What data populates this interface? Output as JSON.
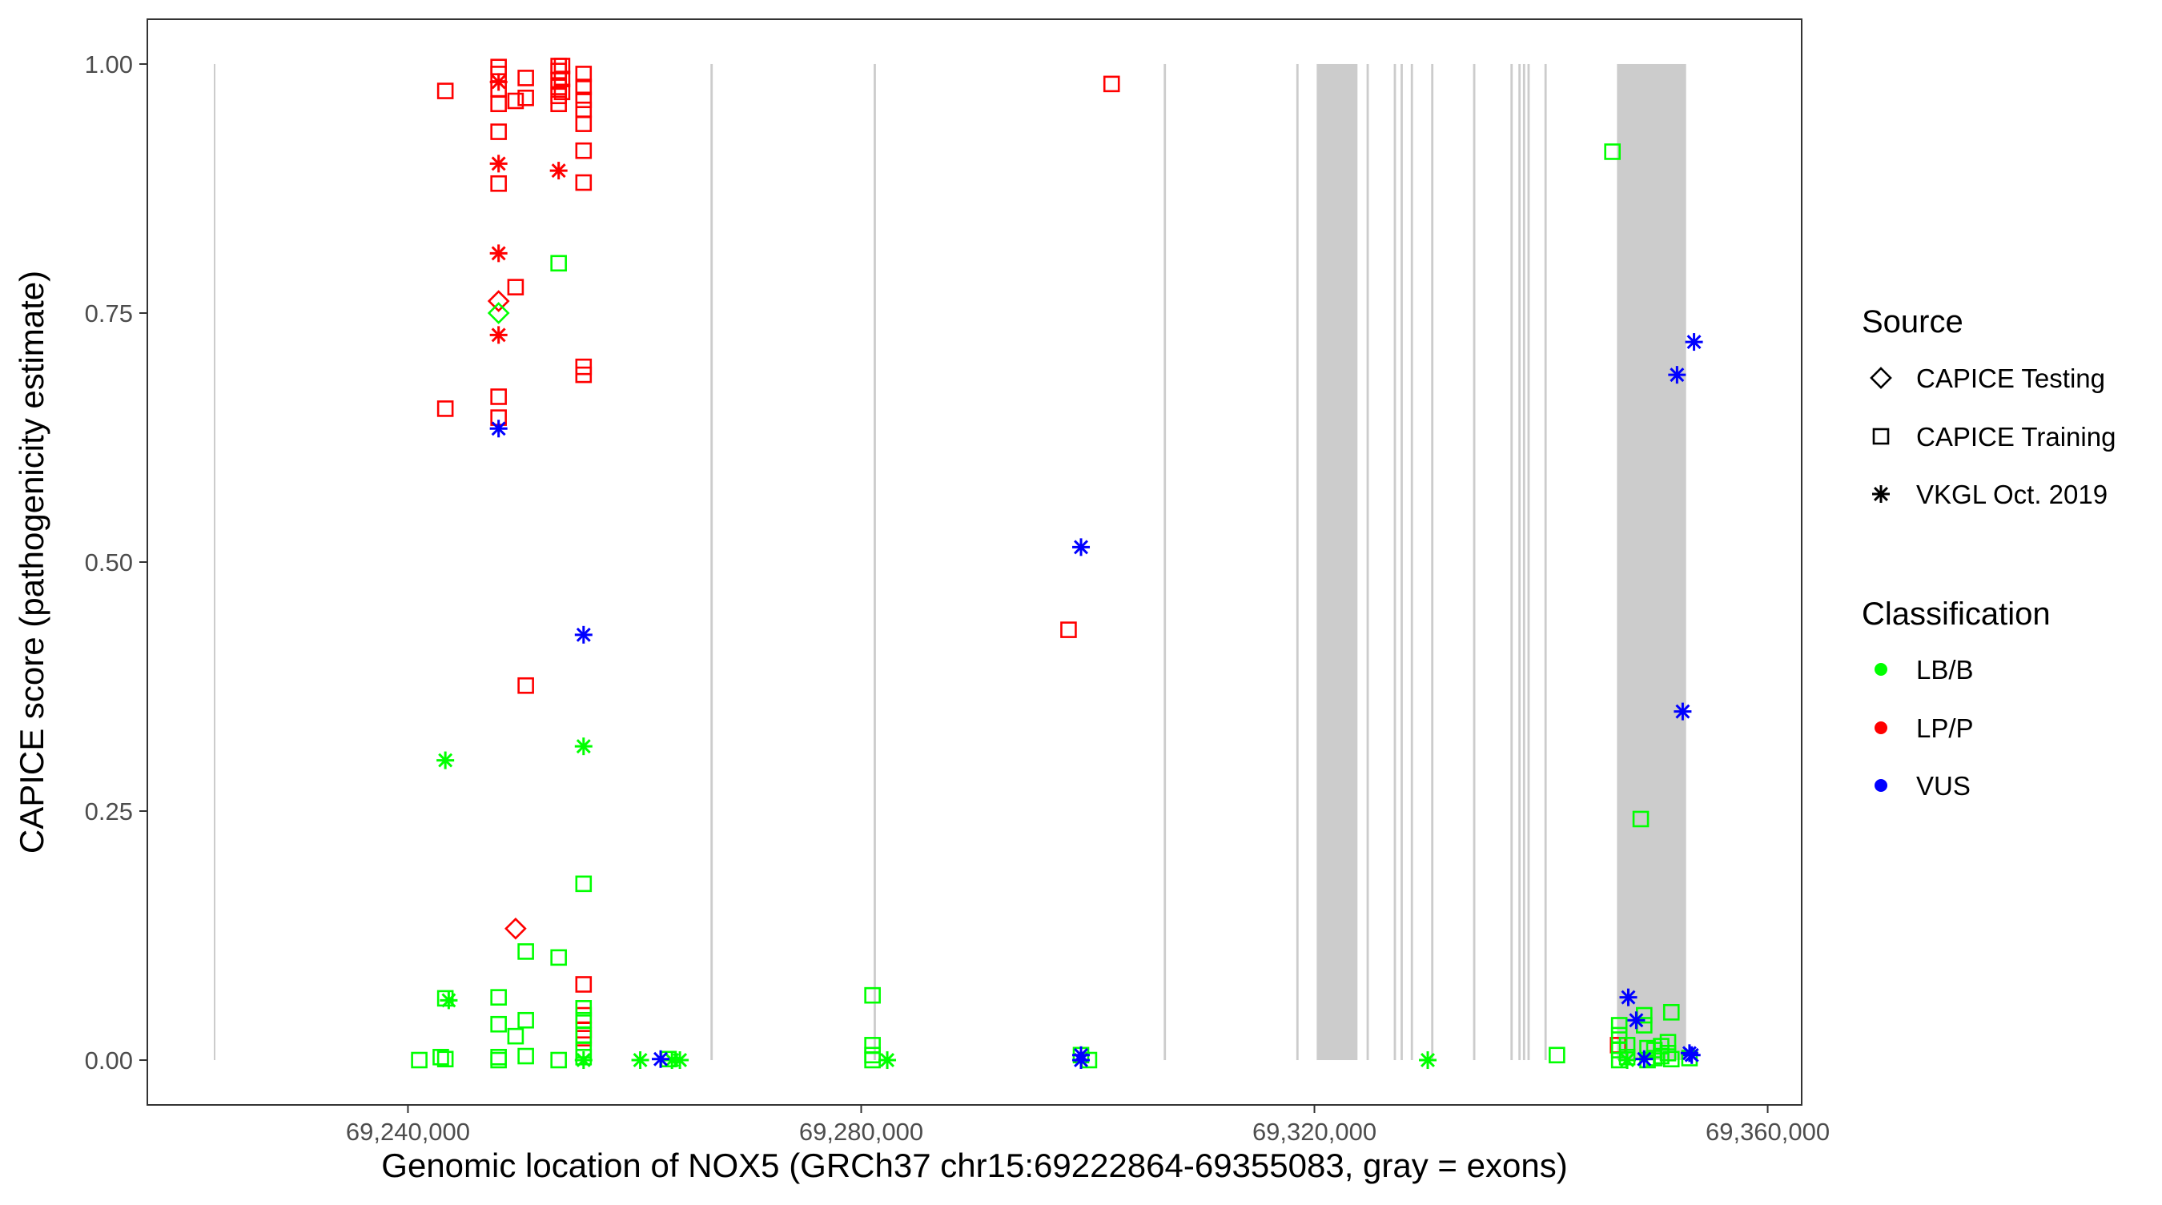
{
  "chart_data": {
    "type": "scatter",
    "xlabel": "Genomic location of NOX5 (GRCh37 chr15:69222864-69355083, gray = exons)",
    "ylabel": "CAPICE score (pathogenicity estimate)",
    "xlim": [
      69217000,
      69363000
    ],
    "ylim": [
      -0.045,
      1.045
    ],
    "x_ticks": [
      69240000,
      69280000,
      69320000,
      69360000
    ],
    "x_tick_labels": [
      "69,240,000",
      "69,280,000",
      "69,320,000",
      "69,360,000"
    ],
    "y_ticks": [
      0,
      0.25,
      0.5,
      0.75,
      1
    ],
    "y_tick_labels": [
      "0.00",
      "0.25",
      "0.50",
      "0.75",
      "1.00"
    ],
    "grid": false,
    "legend_position": "right",
    "exons": [
      [
        69222864,
        69223000
      ],
      [
        69266700,
        69266900
      ],
      [
        69281100,
        69281300
      ],
      [
        69306700,
        69306900
      ],
      [
        69318400,
        69318600
      ],
      [
        69320200,
        69323800
      ],
      [
        69324600,
        69324800
      ],
      [
        69327000,
        69327200
      ],
      [
        69327600,
        69327800
      ],
      [
        69328500,
        69328700
      ],
      [
        69330300,
        69330500
      ],
      [
        69334000,
        69334200
      ],
      [
        69337300,
        69337500
      ],
      [
        69338000,
        69338200
      ],
      [
        69338400,
        69338600
      ],
      [
        69338800,
        69339000
      ],
      [
        69340300,
        69340500
      ],
      [
        69346700,
        69352800
      ]
    ],
    "legend": {
      "source_title": "Source",
      "source_items": [
        {
          "label": "CAPICE Testing",
          "shape": "diamond"
        },
        {
          "label": "CAPICE Training",
          "shape": "square"
        },
        {
          "label": "VKGL Oct. 2019",
          "shape": "asterisk"
        }
      ],
      "classification_title": "Classification",
      "classification_items": [
        {
          "label": "LB/B",
          "color": "#00ff00"
        },
        {
          "label": "LP/P",
          "color": "#ff0000"
        },
        {
          "label": "VUS",
          "color": "#0000ff"
        }
      ]
    },
    "colors": {
      "LB/B": "#00ff00",
      "LP/P": "#ff0000",
      "VUS": "#0000ff"
    },
    "series": [
      {
        "classification": "LP/P",
        "source": "CAPICE Training",
        "points": [
          [
            69243300,
            0.973
          ],
          [
            69243300,
            0.654
          ],
          [
            69248000,
            0.997
          ],
          [
            69248000,
            0.99
          ],
          [
            69248000,
            0.975
          ],
          [
            69248000,
            0.96
          ],
          [
            69248000,
            0.932
          ],
          [
            69248000,
            0.88
          ],
          [
            69248000,
            0.666
          ],
          [
            69248000,
            0.645
          ],
          [
            69249500,
            0.963
          ],
          [
            69249500,
            0.776
          ],
          [
            69250400,
            0.986
          ],
          [
            69250400,
            0.966
          ],
          [
            69250400,
            0.376
          ],
          [
            69253300,
            0.998
          ],
          [
            69253300,
            0.993
          ],
          [
            69253300,
            0.984
          ],
          [
            69253300,
            0.977
          ],
          [
            69253300,
            0.968
          ],
          [
            69253300,
            0.96
          ],
          [
            69253600,
            0.998
          ],
          [
            69253600,
            0.985
          ],
          [
            69253600,
            0.972
          ],
          [
            69255500,
            0.99
          ],
          [
            69255500,
            0.977
          ],
          [
            69255500,
            0.964
          ],
          [
            69255500,
            0.954
          ],
          [
            69255500,
            0.94
          ],
          [
            69255500,
            0.913
          ],
          [
            69255500,
            0.881
          ],
          [
            69255500,
            0.696
          ],
          [
            69255500,
            0.688
          ],
          [
            69255500,
            0.076
          ],
          [
            69255500,
            0.045
          ],
          [
            69255500,
            0.03
          ],
          [
            69255500,
            0.022
          ],
          [
            69298300,
            0.432
          ],
          [
            69302100,
            0.98
          ],
          [
            69346800,
            0.015
          ]
        ]
      },
      {
        "classification": "LP/P",
        "source": "VKGL Oct. 2019",
        "points": [
          [
            69248000,
            0.982
          ],
          [
            69248000,
            0.9
          ],
          [
            69248000,
            0.81
          ],
          [
            69248000,
            0.728
          ],
          [
            69253300,
            0.893
          ]
        ]
      },
      {
        "classification": "LP/P",
        "source": "CAPICE Testing",
        "points": [
          [
            69248000,
            0.762
          ],
          [
            69249500,
            0.132
          ]
        ]
      },
      {
        "classification": "LB/B",
        "source": "CAPICE Testing",
        "points": [
          [
            69248000,
            0.75
          ]
        ]
      },
      {
        "classification": "LB/B",
        "source": "CAPICE Training",
        "points": [
          [
            69241000,
            0
          ],
          [
            69242900,
            0.003
          ],
          [
            69243300,
            0.001
          ],
          [
            69243300,
            0.062
          ],
          [
            69248000,
            0.063
          ],
          [
            69248000,
            0.036
          ],
          [
            69248000,
            0.003
          ],
          [
            69248000,
            0
          ],
          [
            69249500,
            0.024
          ],
          [
            69250400,
            0.109
          ],
          [
            69250400,
            0.04
          ],
          [
            69250400,
            0.004
          ],
          [
            69253300,
            0.8
          ],
          [
            69253300,
            0.103
          ],
          [
            69253300,
            0
          ],
          [
            69255500,
            0.177
          ],
          [
            69255500,
            0.052
          ],
          [
            69255500,
            0.04
          ],
          [
            69255500,
            0.025
          ],
          [
            69255500,
            0.01
          ],
          [
            69255500,
            0.003
          ],
          [
            69263000,
            0.001
          ],
          [
            69281000,
            0.065
          ],
          [
            69281000,
            0.015
          ],
          [
            69281000,
            0.005
          ],
          [
            69281000,
            0
          ],
          [
            69299400,
            0.005
          ],
          [
            69300100,
            0
          ],
          [
            69341400,
            0.005
          ],
          [
            69346300,
            0.912
          ],
          [
            69346900,
            0.035
          ],
          [
            69346900,
            0.025
          ],
          [
            69346900,
            0.01
          ],
          [
            69346900,
            0
          ],
          [
            69347600,
            0.015
          ],
          [
            69347600,
            0.003
          ],
          [
            69348800,
            0.242
          ],
          [
            69349100,
            0.045
          ],
          [
            69349100,
            0.035
          ],
          [
            69349400,
            0.012
          ],
          [
            69349400,
            0
          ],
          [
            69350000,
            0.01
          ],
          [
            69350000,
            0.002
          ],
          [
            69350600,
            0.014
          ],
          [
            69350600,
            0.004
          ],
          [
            69351200,
            0.018
          ],
          [
            69351200,
            0.007
          ],
          [
            69351500,
            0.048
          ],
          [
            69351500,
            0.001
          ],
          [
            69353100,
            0.002
          ]
        ]
      },
      {
        "classification": "LB/B",
        "source": "VKGL Oct. 2019",
        "points": [
          [
            69243300,
            0.301
          ],
          [
            69243600,
            0.06
          ],
          [
            69255500,
            0.315
          ],
          [
            69255500,
            0
          ],
          [
            69260500,
            0
          ],
          [
            69263300,
            0
          ],
          [
            69264000,
            0
          ],
          [
            69282300,
            0
          ],
          [
            69330000,
            0
          ],
          [
            69347600,
            0
          ]
        ]
      },
      {
        "classification": "VUS",
        "source": "VKGL Oct. 2019",
        "points": [
          [
            69248000,
            0.634
          ],
          [
            69255500,
            0.427
          ],
          [
            69262300,
            0.001
          ],
          [
            69299400,
            0.515
          ],
          [
            69299400,
            0.005
          ],
          [
            69299400,
            0
          ],
          [
            69347700,
            0.063
          ],
          [
            69348400,
            0.04
          ],
          [
            69349100,
            0.001
          ],
          [
            69352000,
            0.688
          ],
          [
            69352500,
            0.35
          ],
          [
            69353100,
            0.007
          ],
          [
            69353300,
            0.005
          ],
          [
            69353500,
            0.721
          ]
        ]
      }
    ]
  }
}
